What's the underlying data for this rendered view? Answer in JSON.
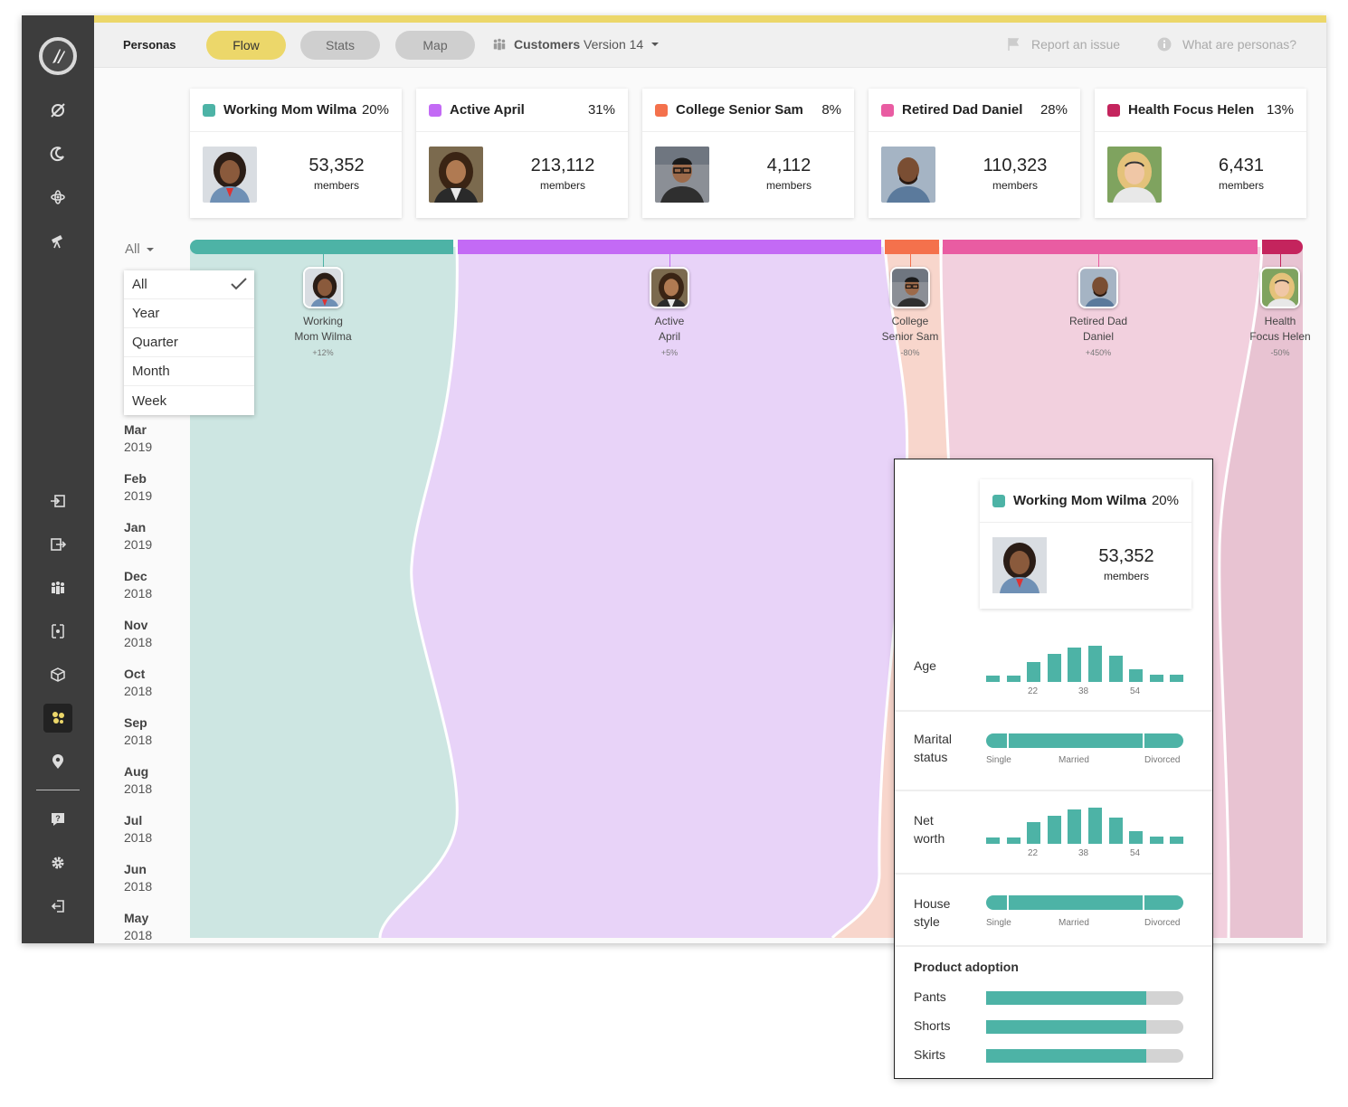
{
  "header": {
    "title": "Personas",
    "tabs": [
      {
        "label": "Flow",
        "active": true
      },
      {
        "label": "Stats",
        "active": false
      },
      {
        "label": "Map",
        "active": false
      }
    ],
    "dataset_bold": "Customers",
    "dataset_version": "Version 14",
    "report_issue": "Report an issue",
    "what_are": "What are personas?"
  },
  "personas": [
    {
      "name": "Working Mom Wilma",
      "pct": "20%",
      "count": "53,352",
      "members": "members",
      "color": "#4db3a6",
      "flow_color": "#cde6e2",
      "label1": "Working",
      "label2": "Mom Wilma",
      "change": "+12%"
    },
    {
      "name": "Active April",
      "pct": "31%",
      "count": "213,112",
      "members": "members",
      "color": "#c36af5",
      "flow_color": "#e8d3f8",
      "label1": "Active",
      "label2": "April",
      "change": "+5%"
    },
    {
      "name": "College Senior Sam",
      "pct": "8%",
      "count": "4,112",
      "members": "members",
      "color": "#f4714c",
      "flow_color": "#f8d6cc",
      "label1": "College",
      "label2": "Senior Sam",
      "change": "-80%"
    },
    {
      "name": "Retired Dad Daniel",
      "pct": "28%",
      "count": "110,323",
      "members": "members",
      "color": "#e95ca2",
      "flow_color": "#f2d0de",
      "label1": "Retired Dad",
      "label2": "Daniel",
      "change": "+450%"
    },
    {
      "name": "Health Focus Helen",
      "pct": "13%",
      "count": "6,431",
      "members": "members",
      "color": "#c4245d",
      "flow_color": "#e8c3d2",
      "label1": "Health",
      "label2": "Focus Helen",
      "change": "-50%"
    }
  ],
  "period": {
    "selected": "All",
    "options": [
      "All",
      "Year",
      "Quarter",
      "Month",
      "Week"
    ]
  },
  "months": [
    {
      "m": "Mar",
      "y": "2019"
    },
    {
      "m": "Feb",
      "y": "2019"
    },
    {
      "m": "Jan",
      "y": "2019"
    },
    {
      "m": "Dec",
      "y": "2018"
    },
    {
      "m": "Nov",
      "y": "2018"
    },
    {
      "m": "Oct",
      "y": "2018"
    },
    {
      "m": "Sep",
      "y": "2018"
    },
    {
      "m": "Aug",
      "y": "2018"
    },
    {
      "m": "Jul",
      "y": "2018"
    },
    {
      "m": "Jun",
      "y": "2018"
    },
    {
      "m": "May",
      "y": "2018"
    }
  ],
  "popup": {
    "name": "Working Mom Wilma",
    "pct": "20%",
    "count": "53,352",
    "members": "members",
    "age_label": "Age",
    "age_ticks": [
      "22",
      "38",
      "54"
    ],
    "age_hist": [
      0.18,
      0.18,
      0.55,
      0.78,
      0.95,
      1.0,
      0.72,
      0.35,
      0.2,
      0.2
    ],
    "marital_label1": "Marital",
    "marital_label2": "status",
    "marital_ticks": [
      "Single",
      "Married",
      "Divorced"
    ],
    "networth_label1": "Net",
    "networth_label2": "worth",
    "networth_ticks": [
      "22",
      "38",
      "54"
    ],
    "networth_hist": [
      0.18,
      0.18,
      0.6,
      0.78,
      0.95,
      1.0,
      0.72,
      0.35,
      0.2,
      0.2
    ],
    "house_label1": "House",
    "house_label2": "style",
    "house_ticks": [
      "Single",
      "Married",
      "Divorced"
    ],
    "adoption_title": "Product adoption",
    "adoption": [
      {
        "label": "Pants",
        "value": 0.81
      },
      {
        "label": "Shorts",
        "value": 0.81
      },
      {
        "label": "Skirts",
        "value": 0.81
      }
    ]
  },
  "sidebar_icons": [
    "rocket-slash-icon",
    "moon-icon",
    "atom-icon",
    "telescope-icon",
    "import-icon",
    "export-icon",
    "people-icon",
    "transform-icon",
    "cube-icon",
    "personas-icon",
    "location-pin-icon",
    "help-icon",
    "settings-icon",
    "logout-icon"
  ]
}
